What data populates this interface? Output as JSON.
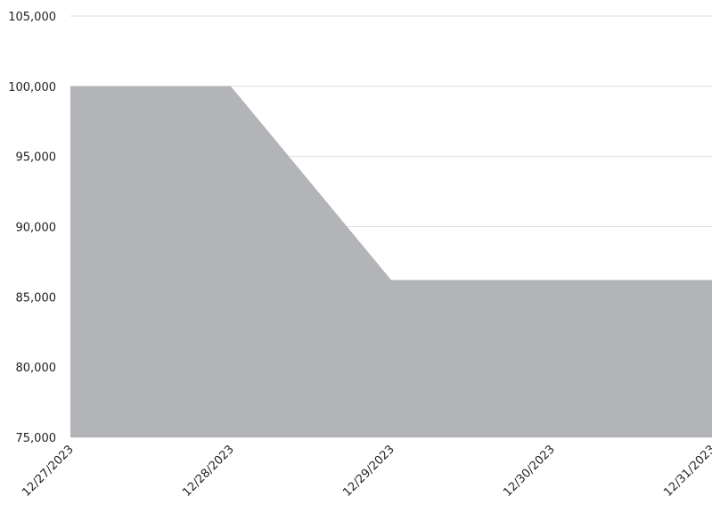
{
  "chart_data": {
    "type": "area",
    "title": "",
    "xlabel": "",
    "ylabel": "",
    "x": [
      "12/27/2023",
      "12/28/2023",
      "12/29/2023",
      "12/30/2023",
      "12/31/2023"
    ],
    "series": [
      {
        "values": [
          100000,
          100000,
          86200,
          86200,
          86200
        ],
        "color": "#b3b4b7"
      }
    ],
    "ylim": [
      75000,
      105000
    ],
    "yticks": [
      75000,
      80000,
      85000,
      90000,
      95000,
      100000,
      105000
    ],
    "ytick_labels": [
      "75,000",
      "80,000",
      "85,000",
      "90,000",
      "95,000",
      "100,000",
      "105,000"
    ],
    "grid": true,
    "legend": "none"
  }
}
